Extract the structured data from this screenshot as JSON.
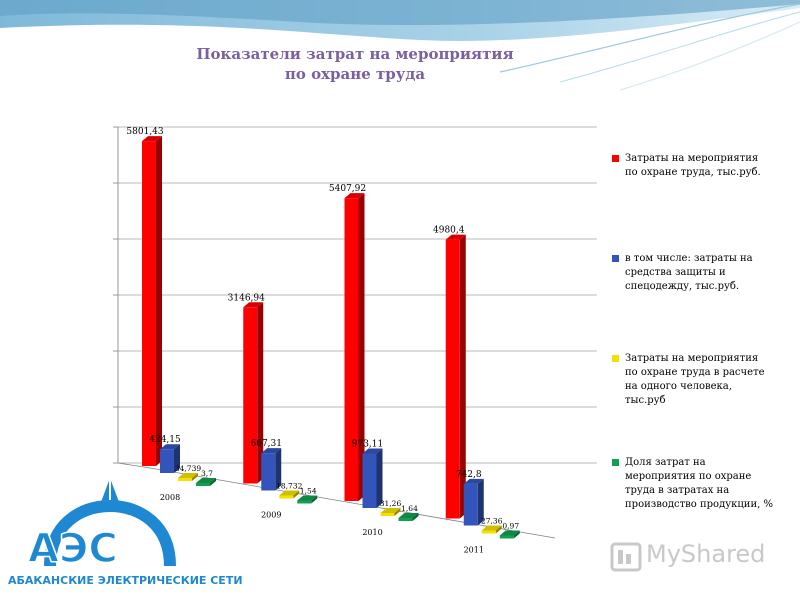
{
  "title_line1": "Показатели затрат на мероприятия",
  "title_line2": "по охране труда",
  "chart_data": {
    "type": "bar",
    "categories": [
      "2008",
      "2009",
      "2010",
      "2011"
    ],
    "ylim": [
      0,
      6000
    ],
    "grid": true,
    "legend_position": "right",
    "series": [
      {
        "name": "Затраты на мероприятия по охране труда, тыс.руб.",
        "color": "#ff0000",
        "values": [
          5801.43,
          3146.94,
          5407.92,
          4980.4
        ],
        "labels": [
          "5801,43",
          "3146,94",
          "5407,92",
          "4980,4"
        ]
      },
      {
        "name": "в том числе: затраты на средства защиты и спецодежду, тыс.руб.",
        "color": "#3355bb",
        "values": [
          424.15,
          667.31,
          973.11,
          742.8
        ],
        "labels": [
          "424,15",
          "667,31",
          "973,11",
          "742,8"
        ]
      },
      {
        "name": "Затраты на мероприятия по охране труда в расчете на одного человека, тыс.руб",
        "color": "#f5e100",
        "values": [
          34.739,
          18.732,
          31.26,
          27.36
        ],
        "labels": [
          "34,739",
          "18,732",
          "31,26",
          "27,36"
        ]
      },
      {
        "name": "Доля затрат на мероприятия по охране труда в затратах на производство продукции, %",
        "color": "#11a050",
        "values": [
          3.7,
          1.54,
          1.64,
          0.97
        ],
        "labels": [
          "3,7",
          "1,54",
          "1,64",
          "0,97"
        ]
      }
    ]
  },
  "logo_text": "АЭС",
  "logo_caption": "АБАКАНСКИЕ ЭЛЕКТРИЧЕСКИЕ СЕТИ",
  "watermark": "MyShared",
  "colors": {
    "title": "#7b5fa0",
    "logo": "#1e88d2"
  }
}
